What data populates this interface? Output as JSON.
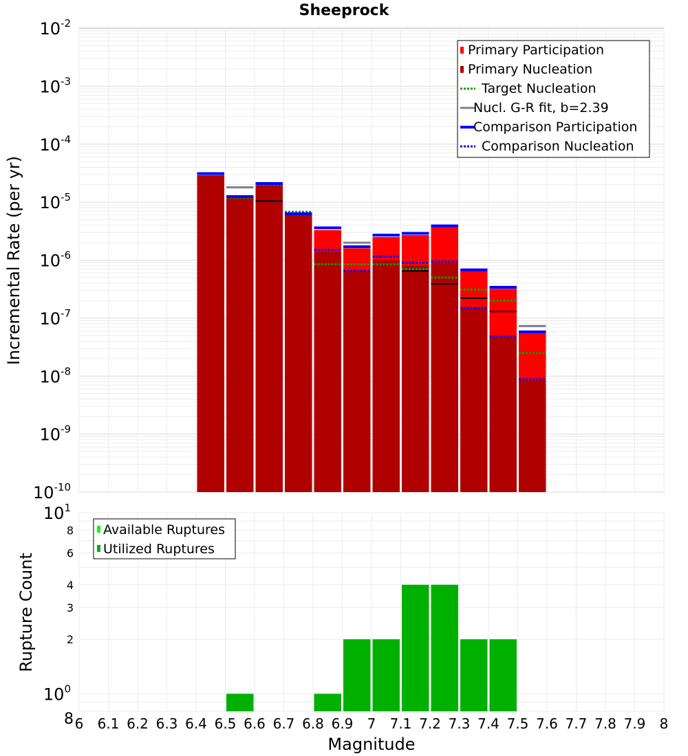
{
  "chart_data": [
    {
      "type": "bar",
      "title": "Sheeprock",
      "xlabel": "Magnitude",
      "ylabel": "Incremental Rate (per yr)",
      "ylog": true,
      "ylim": [
        1e-10,
        0.01
      ],
      "xlim": [
        6.0,
        8.0
      ],
      "y_tick_labels": [
        {
          "base": "10",
          "exp": "-2"
        },
        {
          "base": "10",
          "exp": "-3"
        },
        {
          "base": "10",
          "exp": "-4"
        },
        {
          "base": "10",
          "exp": "-5"
        },
        {
          "base": "10",
          "exp": "-6"
        },
        {
          "base": "10",
          "exp": "-7"
        },
        {
          "base": "10",
          "exp": "-8"
        },
        {
          "base": "10",
          "exp": "-9"
        },
        {
          "base": "10",
          "exp": "-10"
        }
      ],
      "legend_position": "top-right",
      "legend": [
        {
          "label": "Primary Participation",
          "color": "#ff0000",
          "style": "box"
        },
        {
          "label": "Primary Nucleation",
          "color": "#b00000",
          "style": "box"
        },
        {
          "label": "Target Nucleation",
          "color": "#00a000",
          "style": "dotted"
        },
        {
          "label": "Nucl. G-R fit, b=2.39",
          "color": "#808080",
          "style": "solid"
        },
        {
          "label": "Comparison Participation",
          "color": "#0000ff",
          "style": "thick"
        },
        {
          "label": "Comparison Nucleation",
          "color": "#0000ff",
          "style": "dotted"
        }
      ],
      "x": [
        6.45,
        6.55,
        6.65,
        6.75,
        6.85,
        6.95,
        7.05,
        7.15,
        7.25,
        7.35,
        7.45,
        7.55
      ],
      "series": [
        {
          "name": "Primary Participation",
          "color": "#ff0000",
          "values": [
            2.9e-05,
            1.2e-05,
            2e-05,
            6e-06,
            3.3e-06,
            1.6e-06,
            2.5e-06,
            2.7e-06,
            3.7e-06,
            6.5e-07,
            3.2e-07,
            5.5e-08
          ]
        },
        {
          "name": "Primary Nucleation",
          "color": "#b00000",
          "values": [
            2.9e-05,
            1.2e-05,
            2e-05,
            6e-06,
            1.4e-06,
            6.5e-07,
            1e-06,
            8e-07,
            9e-07,
            1.5e-07,
            4.8e-08,
            8.5e-09
          ]
        },
        {
          "name": "Target Nucleation",
          "color": "#00a000",
          "values": [
            3.1e-05,
            1.2e-05,
            2e-05,
            6.8e-06,
            8.5e-07,
            8.5e-07,
            8.5e-07,
            7e-07,
            5e-07,
            3.1e-07,
            2e-07,
            2.5e-08
          ]
        },
        {
          "name": "Nucl. G-R fit, b=2.39",
          "color": "#808080",
          "values": [
            null,
            1.8e-05,
            null,
            null,
            null,
            2e-06,
            null,
            null,
            null,
            null,
            null,
            7.3e-08
          ]
        },
        {
          "name": "Nucl. G-R fit (black)",
          "color": "#000000",
          "values": [
            null,
            null,
            1.05e-05,
            null,
            null,
            null,
            null,
            6.5e-07,
            3.9e-07,
            2.2e-07,
            1.3e-07,
            null
          ]
        },
        {
          "name": "Comparison Participation",
          "color": "#0000ff",
          "values": [
            3.1e-05,
            1.25e-05,
            2.1e-05,
            6.3e-06,
            3.6e-06,
            1.7e-06,
            2.7e-06,
            2.9e-06,
            3.9e-06,
            6.8e-07,
            3.4e-07,
            5.8e-08
          ]
        },
        {
          "name": "Comparison Nucleation",
          "color": "#0000ff",
          "values": [
            3.1e-05,
            1.25e-05,
            2.1e-05,
            6.3e-06,
            1.5e-06,
            6.5e-07,
            1.15e-06,
            9e-07,
            9.5e-07,
            1.5e-07,
            4.8e-08,
            8.8e-09
          ]
        }
      ]
    },
    {
      "type": "bar",
      "xlabel": "Magnitude",
      "ylabel": "Rupture Count",
      "ylog": true,
      "ylim": [
        0.8,
        10
      ],
      "xlim": [
        6.0,
        8.0
      ],
      "y_ticks": [
        {
          "value": 10,
          "base": "10",
          "exp": "1"
        },
        {
          "value": 8,
          "label": "8"
        },
        {
          "value": 6,
          "label": "6"
        },
        {
          "value": 4,
          "label": "4"
        },
        {
          "value": 3,
          "label": "3"
        },
        {
          "value": 2,
          "label": "2"
        },
        {
          "value": 1,
          "base": "10",
          "exp": "0"
        },
        {
          "value": 0.8,
          "label": "8"
        }
      ],
      "x_ticks": [
        "6",
        "6.1",
        "6.2",
        "6.3",
        "6.4",
        "6.5",
        "6.6",
        "6.7",
        "6.8",
        "6.9",
        "7",
        "7.1",
        "7.2",
        "7.3",
        "7.4",
        "7.5",
        "7.6",
        "7.7",
        "7.8",
        "7.9",
        "8"
      ],
      "legend_position": "top-left",
      "legend": [
        {
          "label": "Available Ruptures",
          "color": "#00ff00"
        },
        {
          "label": "Utilized Ruptures",
          "color": "#00b000"
        }
      ],
      "x": [
        6.55,
        6.85,
        6.95,
        7.05,
        7.15,
        7.25,
        7.35,
        7.45
      ],
      "series": [
        {
          "name": "Utilized Ruptures",
          "color": "#00b000",
          "values": [
            1,
            1,
            2,
            2,
            4,
            4,
            2,
            2
          ]
        }
      ]
    }
  ]
}
